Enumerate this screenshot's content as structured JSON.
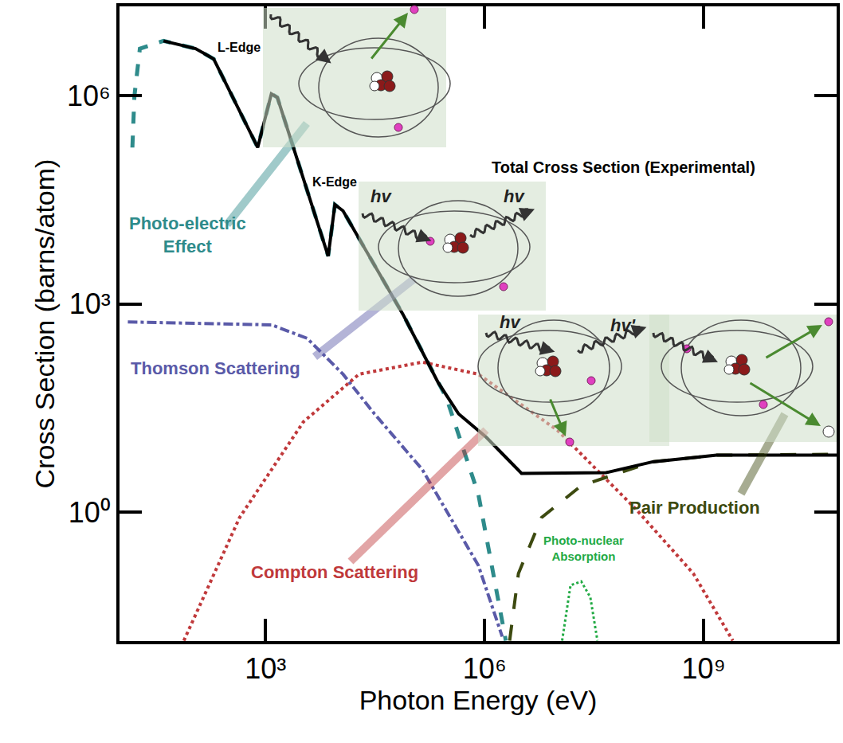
{
  "chart_data": {
    "type": "line",
    "log": true,
    "grid": false,
    "xlabel": "Photon Energy (eV)",
    "ylabel": "Cross Section (barns/atom)",
    "xlim": [
      10,
      66000000000
    ],
    "ylim": [
      0.0138,
      19500000
    ],
    "xticks": [
      {
        "value": 1000,
        "label": "10³"
      },
      {
        "value": 1000000,
        "label": "10⁶"
      },
      {
        "value": 1000000000,
        "label": "10⁹"
      }
    ],
    "yticks": [
      {
        "value": 1,
        "label": "10⁰"
      },
      {
        "value": 1000,
        "label": "10³"
      },
      {
        "value": 1000000,
        "label": "10⁶"
      }
    ],
    "annotations": [
      "L-Edge",
      "K-Edge"
    ],
    "illustration_labels": [
      "hv",
      "hv",
      "hv",
      "hv'"
    ],
    "series": [
      {
        "name": "Photo-electric Effect",
        "color": "#2e8b8b",
        "line_style": "dash",
        "x": [
          15,
          16,
          19,
          40,
          110,
          195,
          780,
          1200,
          1450,
          7200,
          8900,
          11500,
          76000,
          300000,
          820000,
          1950000
        ],
        "values": [
          180000,
          1000000,
          4800000,
          6200000,
          4800000,
          3400000,
          180000,
          1070000,
          950000,
          4900,
          27000,
          22000,
          710,
          44,
          1.8,
          0.014
        ]
      },
      {
        "name": "Thomson Scattering",
        "color": "#5a5aa8",
        "line_style": "dashdot",
        "x": [
          13,
          1200,
          3700,
          11500,
          31000,
          140000,
          820000,
          1740000
        ],
        "values": [
          550,
          500,
          320,
          97,
          26,
          4.1,
          0.17,
          0.016
        ]
      },
      {
        "name": "Compton Scattering",
        "color": "#c0393b",
        "line_style": "dot",
        "x": [
          76,
          440,
          3300,
          19000,
          140000,
          820000,
          10000000,
          120000000,
          720000000,
          2500000000
        ],
        "values": [
          0.014,
          0.83,
          20,
          97,
          145,
          97,
          15,
          1.08,
          0.13,
          0.014
        ]
      },
      {
        "name": "Pair Production",
        "color": "#3d4a10",
        "line_style": "longdash",
        "x": [
          2200000,
          2900000,
          6000000,
          21000000,
          200000000,
          1500000000,
          66000000000
        ],
        "values": [
          0.014,
          0.13,
          0.83,
          2.4,
          5.3,
          6.6,
          6.8
        ]
      },
      {
        "name": "Photo-nuclear Absorption",
        "color": "#22aa44",
        "line_style": "dot",
        "x": [
          11500000,
          15000000,
          21000000,
          28000000,
          35000000
        ],
        "values": [
          0.014,
          0.088,
          0.1,
          0.059,
          0.014
        ]
      },
      {
        "name": "Total Cross Section (Experimental)",
        "color": "#000000",
        "line_style": "solid",
        "x": [
          40,
          110,
          195,
          780,
          1200,
          1450,
          7200,
          8900,
          11500,
          76000,
          230000,
          440000,
          1050000,
          3200000,
          46000000,
          200000000,
          1500000000,
          66000000000
        ],
        "values": [
          6200000,
          4800000,
          3400000,
          180000,
          1070000,
          950000,
          4900,
          27000,
          22000,
          710,
          74,
          26,
          12,
          3.6,
          3.7,
          5.3,
          6.6,
          6.6
        ]
      }
    ]
  }
}
